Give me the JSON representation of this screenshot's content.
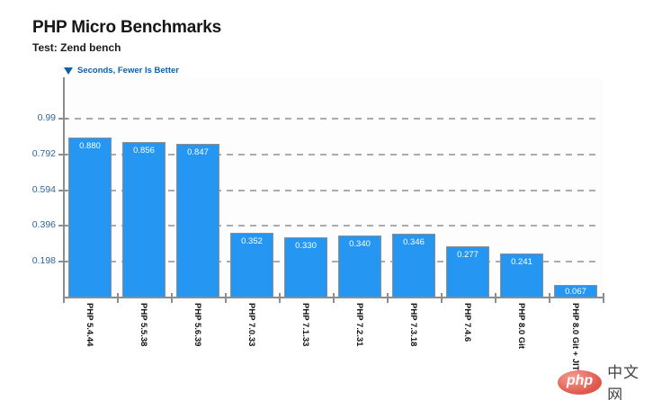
{
  "header": {
    "title": "PHP Micro Benchmarks",
    "subtitle": "Test: Zend bench"
  },
  "legend": {
    "icon": "down-triangle-icon",
    "label": "Seconds, Fewer Is Better"
  },
  "watermark": {
    "logo_text": "php",
    "site_text": "中文网"
  },
  "chart_data": {
    "type": "bar",
    "title": "PHP Micro Benchmarks",
    "subtitle": "Test: Zend bench",
    "ylabel": "Seconds",
    "lower_is_better": true,
    "legend_position": "top-left",
    "grid": "dashed-horizontal",
    "categories": [
      "PHP 5.4.44",
      "PHP 5.5.38",
      "PHP 5.6.39",
      "PHP 7.0.33",
      "PHP 7.1.33",
      "PHP 7.2.31",
      "PHP 7.3.18",
      "PHP 7.4.6",
      "PHP 8.0 Git",
      "PHP 8.0 Git + JIT"
    ],
    "values": [
      0.88,
      0.856,
      0.847,
      0.352,
      0.33,
      0.34,
      0.346,
      0.277,
      0.241,
      0.067
    ],
    "value_labels": [
      "0.880",
      "0.856",
      "0.847",
      "0.352",
      "0.330",
      "0.340",
      "0.346",
      "0.277",
      "0.241",
      "0.067"
    ],
    "y_ticks": [
      0.198,
      0.396,
      0.594,
      0.792,
      0.99
    ],
    "y_tick_labels": [
      "0.198",
      "0.396",
      "0.594",
      "0.792",
      "0.99"
    ],
    "ylim": [
      0,
      1.188
    ],
    "colors": {
      "bar_fill": "#2596f2",
      "bar_border": "#8f8f8f",
      "bar_value_text": "#ffffff",
      "axis": "#8d8d8d",
      "grid": "#ababab",
      "y_tick_text": "#31659b",
      "legend_text": "#0b5fae",
      "title_text": "#161616",
      "watermark_red": "#e05a4e",
      "watermark_gray": "#434343"
    }
  }
}
